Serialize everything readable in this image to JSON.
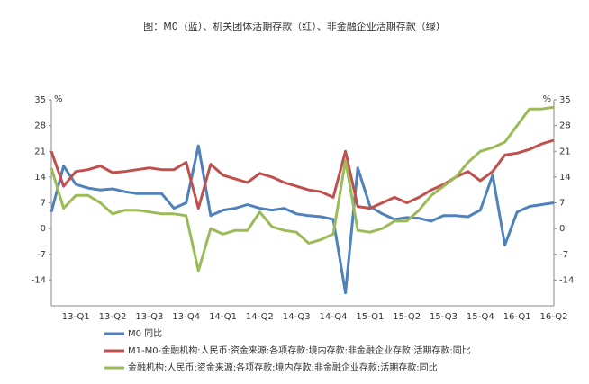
{
  "chart_data": {
    "type": "line",
    "title": "图：M0（蓝）、机关团体活期存款（红）、非金融企业活期存款（绿）",
    "y_unit": "%",
    "categories": [
      null,
      null,
      "13-Q1",
      null,
      null,
      "13-Q2",
      null,
      null,
      "13-Q3",
      null,
      null,
      "13-Q4",
      null,
      null,
      "14-Q1",
      null,
      null,
      "14-Q2",
      null,
      null,
      "14-Q3",
      null,
      null,
      "14-Q4",
      null,
      null,
      "15-Q1",
      null,
      null,
      "15-Q2",
      null,
      null,
      "15-Q3",
      null,
      null,
      "15-Q4",
      null,
      null,
      "16-Q1",
      null,
      null,
      "16-Q2"
    ],
    "series": [
      {
        "name": "M0 同比",
        "color": "#4f81bd",
        "values": [
          4.5,
          17,
          12,
          11,
          10.5,
          10.8,
          10,
          9.5,
          9.5,
          9.5,
          5.5,
          7,
          22.5,
          3.5,
          5,
          5.5,
          6.5,
          5.5,
          5,
          5.5,
          4,
          3.5,
          3.2,
          2.5,
          -17.5,
          16.5,
          6,
          4,
          2.5,
          3,
          2.8,
          2,
          3.5,
          3.5,
          3.2,
          5,
          14.5,
          -4.5,
          4.5,
          6,
          6.5,
          7
        ]
      },
      {
        "name": "M1-M0-金融机构:人民币:资金来源:各项存款:境内存款:非金融企业存款:活期存款:同比",
        "color": "#c0504d",
        "values": [
          21,
          11.5,
          15.5,
          16,
          17,
          15.2,
          15.5,
          16,
          16.5,
          16,
          16,
          18,
          5.5,
          17.5,
          14.5,
          13.5,
          12.5,
          15,
          14,
          12.5,
          11.5,
          10.5,
          10,
          8.5,
          21,
          6,
          5.5,
          7,
          8.5,
          7,
          8.5,
          10.5,
          12,
          14,
          15.5,
          13,
          15.5,
          20,
          20.5,
          21.5,
          23,
          24
        ]
      },
      {
        "name": "金融机构:人民币:资金来源:各项存款:境内存款:非金融企业存款:活期存款:同比",
        "color": "#9bbb59",
        "values": [
          16.5,
          5.5,
          9,
          9,
          7,
          4,
          5,
          5,
          4.5,
          4,
          4,
          3.5,
          -11.5,
          0,
          -1.5,
          -0.5,
          -0.5,
          4.5,
          0.5,
          -0.5,
          -1,
          -4,
          -3,
          -1.5,
          18.5,
          -0.5,
          -1,
          0,
          2,
          2,
          5,
          9,
          11.5,
          14,
          18,
          21,
          22,
          23.5,
          28,
          32.5,
          32.5,
          33
        ]
      }
    ],
    "ylim": [
      -21,
      35
    ],
    "yticks": [
      35,
      28,
      21,
      14,
      7,
      0,
      -7,
      -14
    ],
    "y2lim": [
      -21,
      35
    ],
    "y2ticks": [
      35,
      28,
      21,
      14,
      7,
      0,
      -7,
      -14
    ],
    "grid": false,
    "legend": "bottom"
  }
}
